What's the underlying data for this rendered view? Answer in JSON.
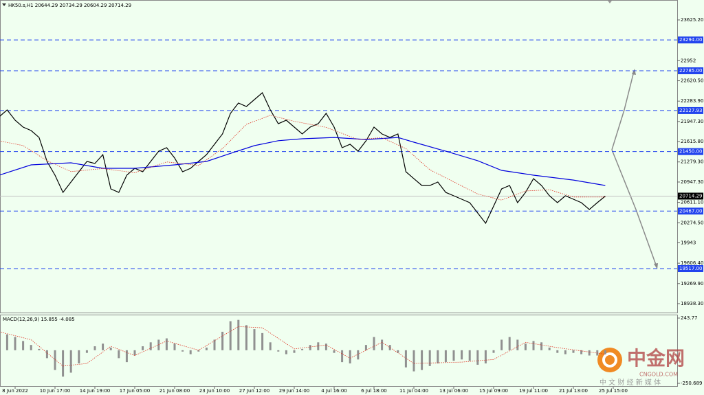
{
  "chart_data": [
    {
      "type": "line",
      "title": "HK50.s,H1  20644.29 20734.29 20604.29 20714.29",
      "categories": [
        null,
        null,
        "8 Jun 2022",
        null,
        null,
        null,
        null,
        "10 Jun 17:00",
        null,
        null,
        null,
        null,
        "14 Jun 19:00",
        null,
        null,
        null,
        null,
        "17 Jun 05:00",
        null,
        null,
        null,
        null,
        "21 Jun 08:00",
        null,
        null,
        null,
        null,
        "23 Jun 10:00",
        null,
        null,
        null,
        null,
        "27 Jun 12:00",
        null,
        null,
        null,
        null,
        "29 Jun 14:00",
        null,
        null,
        null,
        null,
        "4 Jul 16:00",
        null,
        null,
        null,
        null,
        "6 Jul 18:00",
        null,
        null,
        null,
        null,
        "11 Jul 04:00",
        null,
        null,
        null,
        null,
        "13 Jul 06:00",
        null,
        null,
        null,
        null,
        "15 Jul 09:00",
        null,
        null,
        null,
        null,
        "19 Jul 11:00",
        null,
        null,
        null,
        null,
        "21 Jul 13:00",
        null,
        null,
        null,
        null,
        "25 Jul 15:00"
      ],
      "series": [
        {
          "color": "#000000",
          "values": [
            22025,
            22138,
            21968,
            21855,
            21798,
            21684,
            21287,
            21060,
            20776,
            20947,
            21117,
            21287,
            21253,
            21400,
            20833,
            20776,
            21060,
            21174,
            21117,
            21287,
            21457,
            21514,
            21344,
            21117,
            21174,
            21287,
            21400,
            21571,
            21741,
            22082,
            22252,
            22195,
            22309,
            22422,
            22138,
            21911,
            21968,
            21855,
            21741,
            21855,
            21911,
            22082,
            21855,
            21514,
            21571,
            21457,
            21628,
            21855,
            21741,
            21684,
            21741,
            21117,
            21003,
            20890,
            20890,
            20947,
            20776,
            20720,
            20663,
            20606,
            20436,
            20266,
            20550,
            20833,
            20890,
            20606,
            20776,
            21003,
            20890,
            20720,
            20606,
            20720,
            20663,
            20606,
            20493,
            20606,
            20714.29,
            null
          ]
        },
        {
          "color": "#0000dd",
          "x": [
            0,
            4,
            9,
            13,
            17,
            22,
            26,
            29,
            32,
            35,
            38,
            42,
            46,
            50,
            52,
            56,
            60,
            63,
            67,
            72,
            76
          ],
          "values": [
            21060,
            21231,
            21265,
            21174,
            21174,
            21231,
            21287,
            21420,
            21548,
            21630,
            21662,
            21684,
            21650,
            21684,
            21605,
            21457,
            21300,
            21140,
            21060,
            20980,
            20890
          ]
        },
        {
          "color": "#e03020",
          "style": "dotted",
          "x": [
            0,
            3,
            6,
            9,
            13,
            17,
            21,
            25,
            28,
            31,
            34,
            37,
            41,
            45,
            48,
            51,
            54,
            57,
            60,
            63,
            66,
            69,
            72,
            76
          ],
          "values": [
            21628,
            21550,
            21300,
            21120,
            21170,
            21100,
            21280,
            21220,
            21500,
            21900,
            22050,
            21950,
            21850,
            21650,
            21680,
            21500,
            21150,
            20950,
            20750,
            20650,
            20800,
            20820,
            20700,
            20700
          ]
        }
      ],
      "ylim": [
        18790.8,
        23954.3
      ],
      "yticks": [
        {
          "value": 23625.2,
          "label": "23625.20"
        },
        22952,
        {
          "value": 22620.5,
          "label": "22620.50"
        },
        {
          "value": 22283.9,
          "label": "22283.90"
        },
        {
          "value": 21947.3,
          "label": "21947.30"
        },
        {
          "value": 21615.8,
          "label": "21615.80"
        },
        {
          "value": 21279.3,
          "label": "21279.30"
        },
        {
          "value": 20947.3,
          "label": "20947.30"
        },
        {
          "value": 20611.1,
          "label": "20611.10"
        },
        {
          "value": 20274.5,
          "label": "20274.50"
        },
        19943,
        {
          "value": 19606.4,
          "label": "19606.40"
        },
        {
          "value": 19269.9,
          "label": "19269.90"
        },
        {
          "value": 18938.3,
          "label": "18938.30"
        }
      ],
      "levels": [
        {
          "value": 23294,
          "label": "23294.00"
        },
        {
          "value": 22785,
          "label": "22785.00"
        },
        {
          "value": 22127.93,
          "label": "22127.93"
        },
        {
          "value": 21450,
          "label": "21450.00"
        },
        {
          "value": 20467,
          "label": "20467.00"
        },
        {
          "value": 19517,
          "label": "19517.00"
        }
      ],
      "level_color": "#2244ee",
      "last_price": {
        "value": 20714.29,
        "label": "20714.29"
      }
    },
    {
      "type": "bar",
      "title": "MACD(12,26,9) 15.855 -4.085",
      "series": [
        {
          "color": "#909090",
          "values": [
            130,
            120,
            100,
            70,
            40,
            10,
            -60,
            -150,
            -200,
            -170,
            -100,
            -20,
            30,
            50,
            20,
            -60,
            -90,
            -40,
            30,
            60,
            80,
            90,
            50,
            -10,
            -30,
            -10,
            20,
            80,
            140,
            220,
            230,
            190,
            160,
            130,
            60,
            -10,
            -30,
            -20,
            10,
            40,
            60,
            50,
            -20,
            -90,
            -100,
            -70,
            40,
            100,
            80,
            40,
            -20,
            -130,
            -160,
            -150,
            -120,
            -100,
            -90,
            -80,
            -70,
            -80,
            -110,
            -100,
            -20,
            80,
            100,
            80,
            50,
            70,
            60,
            20,
            -20,
            -30,
            -20,
            -30,
            -40,
            -40,
            -30,
            null
          ]
        },
        {
          "color": "#e03020",
          "style": "dotted",
          "x": [
            0,
            4,
            8,
            11,
            14,
            17,
            21,
            25,
            30,
            33,
            37,
            41,
            44,
            48,
            52,
            58,
            62,
            66,
            70,
            76
          ],
          "values": [
            140,
            80,
            -120,
            -100,
            30,
            -40,
            70,
            0,
            180,
            170,
            10,
            40,
            -60,
            60,
            -100,
            -90,
            -70,
            60,
            20,
            -30
          ]
        }
      ],
      "ylim": [
        -276.7,
        269.8
      ],
      "yticks": [
        243.77,
        -250.689
      ]
    }
  ],
  "watermark": {
    "name": "中金网",
    "domain": "CNGOLD.COM",
    "tagline": "中 文 财 经 新 媒 体"
  }
}
